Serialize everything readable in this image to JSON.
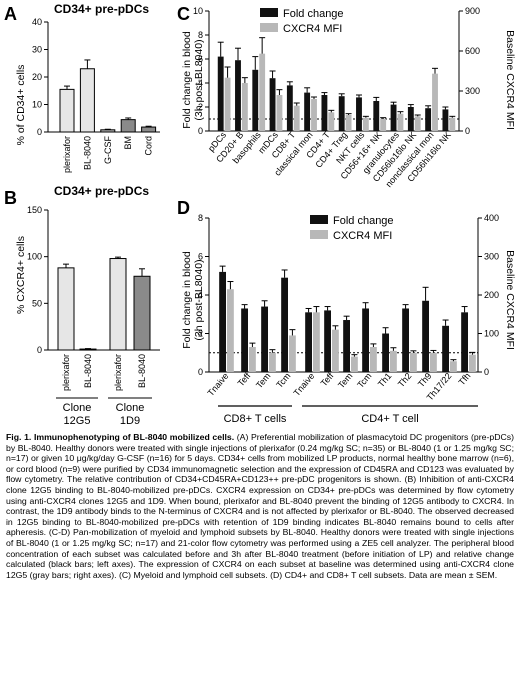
{
  "panels": {
    "A": {
      "letter": "A",
      "title": "CD34+ pre-pDCs",
      "ylabel": "% of CD34+ cells",
      "ticks": [
        "0",
        "10",
        "20",
        "30",
        "40"
      ]
    },
    "B": {
      "letter": "B",
      "title": "CD34+ pre-pDCs",
      "ylabel": "% CXCR4+ cells",
      "ticks": [
        "0",
        "50",
        "100",
        "150"
      ],
      "clones": [
        "Clone\n12G5",
        "Clone\n1D9"
      ]
    },
    "C": {
      "letter": "C",
      "ylabel_left_1": "Fold change in blood",
      "ylabel_left_2": "(3h post-BL8040)",
      "ylabel_right": "Baseline CXCR4 MFI",
      "left_ticks": [
        "0",
        "2",
        "4",
        "6",
        "8",
        "10"
      ],
      "right_ticks": [
        "0",
        "300",
        "600",
        "900"
      ],
      "legend": [
        "Fold change",
        "CXCR4 MFI"
      ]
    },
    "D": {
      "letter": "D",
      "ylabel_left_1": "Fold change in blood",
      "ylabel_left_2": "(3h post-BL8040)",
      "ylabel_right": "Baseline CXCR4 MFI",
      "left_ticks": [
        "0",
        "2",
        "4",
        "6",
        "8"
      ],
      "right_ticks": [
        "0",
        "100",
        "200",
        "300",
        "400"
      ],
      "legend": [
        "Fold change",
        "CXCR4 MFI"
      ],
      "groups": [
        "CD8+ T cells",
        "CD4+ T cell"
      ]
    }
  },
  "colors": {
    "black_bar": "#111111",
    "gray_bar": "#b8b8b8",
    "light_bar": "#e6e6e6",
    "mid_bar": "#8a8a8a"
  },
  "caption": {
    "title": "Fig. 1. Immunophenotyping of BL-8040 mobilized cells.",
    "text": " (A) Preferential mobilization of plasmacytoid DC progenitors (pre-pDCs) by BL-8040. Healthy donors were treated with single injections of plerixafor (0.24 mg/kg SC; n=35) or BL-8040 (1 or 1.25 mg/kg SC; n=17) or given 10 μg/kg/day G-CSF (n=16) for 5 days. CD34+ cells from mobilized LP products, normal healthy bone marrow (n=6), or cord blood (n=9) were purified by CD34 immunomagnetic selection and the expression of CD45RA and CD123 was evaluated by flow cytometry. The relative contribution of CD34+CD45RA+CD123++ pre-pDC progenitors is shown. (B) Inhibition of anti-CXCR4 clone 12G5 binding to BL-8040-mobilized pre-pDCs. CXCR4 expression on CD34+ pre-pDCs was determined by flow cytometry using anti-CXCR4 clones 12G5 and 1D9. When bound, plerixafor and BL-8040 prevent the binding of 12G5 antibody to CXCR4. In contrast, the 1D9 antibody binds to the N-terminus of CXCR4 and is not affected by plerixafor or BL-8040. The observed decreased in 12G5 binding to BL-8040-mobilized pre-pDCs with retention of 1D9 binding indicates BL-8040 remains bound to cells after apheresis. (C-D) Pan-mobilization of myeloid and lymphoid subsets by BL-8040. Healthy donors were treated with single injections of BL-8040 (1 or 1.25 mg/kg SC; n=17) and 21-color flow cytometry was performed using a ZE5 cell analyzer. The peripheral blood concentration of each subset was calculated before and 3h after BL-8040 treatment (before initiation of LP) and relative change calculated (black bars; left axes). The expression of CXCR4 on each subset at baseline was determined using anti-CXCR4 clone 12G5 (gray bars; right axes). (C) Myeloid and lymphoid cell subsets. (D) CD4+ and CD8+ T cell subsets. Data are mean ± SEM."
  },
  "chart_data": [
    {
      "id": "A",
      "type": "bar",
      "categories": [
        "plerixafor",
        "BL-8040",
        "G-CSF",
        "BM",
        "Cord"
      ],
      "values": [
        15.5,
        23,
        0.8,
        4.5,
        1.8
      ],
      "errors": [
        1.2,
        3.2,
        0.2,
        0.6,
        0.3
      ],
      "ylim": [
        0,
        40
      ]
    },
    {
      "id": "B",
      "type": "bar",
      "categories": [
        "plerixafor",
        "BL-8040",
        "plerixafor",
        "BL-8040"
      ],
      "values": [
        88,
        1,
        98,
        79
      ],
      "errors": [
        4,
        0.5,
        1.5,
        8
      ],
      "ylim": [
        0,
        150
      ]
    },
    {
      "id": "C",
      "type": "bar",
      "categories": [
        "pDCs",
        "CD20+ B",
        "basophils",
        "mDCs",
        "CD8+ T",
        "classical mon",
        "CD4+ T",
        "CD4+ Treg",
        "NKT cells",
        "CD56+16+ NK",
        "granulocytes",
        "CD56lo16lo NK",
        "nonclassical mon",
        "CD56hi16lo NK"
      ],
      "series": [
        {
          "name": "Fold change",
          "axis": "left",
          "values": [
            6.2,
            5.9,
            5.1,
            4.4,
            3.8,
            3.2,
            3.0,
            2.9,
            2.8,
            2.5,
            2.2,
            2.0,
            1.9,
            1.8
          ],
          "errors": [
            1.2,
            1.0,
            1.1,
            0.6,
            0.3,
            0.4,
            0.2,
            0.2,
            0.2,
            0.3,
            0.2,
            0.2,
            0.2,
            0.2
          ]
        },
        {
          "name": "CXCR4 MFI",
          "axis": "right",
          "values": [
            400,
            360,
            580,
            270,
            190,
            240,
            140,
            120,
            100,
            90,
            130,
            110,
            430,
            100
          ],
          "errors": [
            80,
            40,
            120,
            40,
            20,
            15,
            15,
            10,
            10,
            10,
            15,
            10,
            40,
            10
          ]
        }
      ],
      "ylim_left": [
        0,
        10
      ],
      "ylim_right": [
        0,
        900
      ],
      "reference_line_left": 1
    },
    {
      "id": "D",
      "type": "bar",
      "categories": [
        "Tnaive",
        "Teff",
        "Tem",
        "Tcm",
        "Tnaive",
        "Teff",
        "Tem",
        "Tcm",
        "Th1",
        "Th2",
        "Th9",
        "Th17/22",
        "Tfh"
      ],
      "series": [
        {
          "name": "Fold change",
          "axis": "left",
          "values": [
            5.2,
            3.3,
            3.4,
            4.9,
            3.1,
            3.2,
            2.7,
            3.3,
            2.0,
            3.3,
            3.7,
            2.4,
            3.1
          ],
          "errors": [
            0.3,
            0.2,
            0.3,
            0.4,
            0.2,
            0.2,
            0.2,
            0.3,
            0.3,
            0.2,
            0.7,
            0.3,
            0.3
          ],
          "group": [
            0,
            0,
            0,
            0,
            1,
            1,
            1,
            1,
            1,
            1,
            1,
            1,
            1
          ]
        },
        {
          "name": "CXCR4 MFI",
          "axis": "right",
          "values": [
            215,
            65,
            50,
            95,
            155,
            110,
            40,
            65,
            55,
            50,
            50,
            28,
            45
          ],
          "errors": [
            20,
            10,
            8,
            15,
            15,
            10,
            5,
            8,
            8,
            5,
            6,
            4,
            6
          ]
        }
      ],
      "ylim_left": [
        0,
        8
      ],
      "ylim_right": [
        0,
        400
      ],
      "reference_line_left": 1
    }
  ]
}
